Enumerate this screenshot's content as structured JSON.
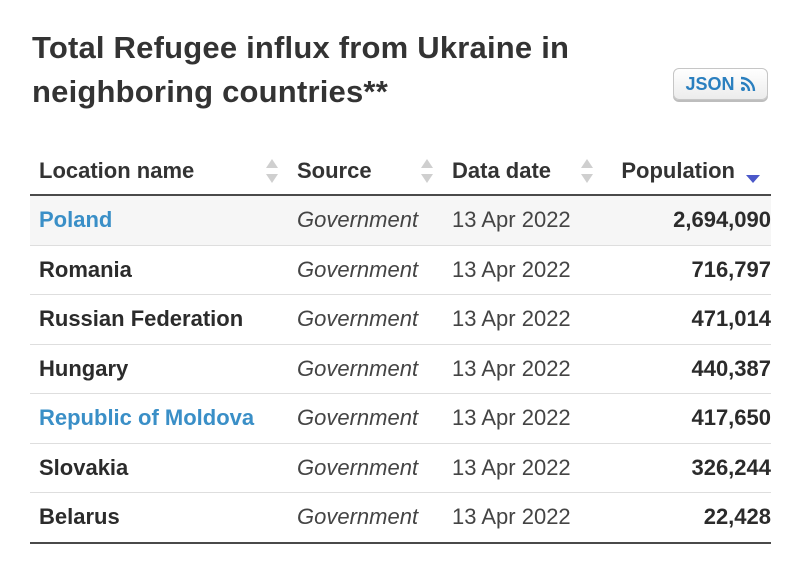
{
  "title": "Total Refugee influx from Ukraine in neighboring countries**",
  "json_button": {
    "label": "JSON",
    "icon": "rss-feed-icon",
    "color": "#2a7fbf"
  },
  "table": {
    "columns": [
      {
        "label": "Location name",
        "sort": "none"
      },
      {
        "label": "Source",
        "sort": "none"
      },
      {
        "label": "Data date",
        "sort": "none"
      },
      {
        "label": "Population",
        "sort": "descending"
      }
    ],
    "rows": [
      {
        "location": "Poland",
        "linked": true,
        "source": "Government",
        "date": "13 Apr 2022",
        "population": "2,694,090"
      },
      {
        "location": "Romania",
        "linked": false,
        "source": "Government",
        "date": "13 Apr 2022",
        "population": "716,797"
      },
      {
        "location": "Russian Federation",
        "linked": false,
        "source": "Government",
        "date": "13 Apr 2022",
        "population": "471,014"
      },
      {
        "location": "Hungary",
        "linked": false,
        "source": "Government",
        "date": "13 Apr 2022",
        "population": "440,387"
      },
      {
        "location": "Republic of Moldova",
        "linked": true,
        "source": "Government",
        "date": "13 Apr 2022",
        "population": "417,650"
      },
      {
        "location": "Slovakia",
        "linked": false,
        "source": "Government",
        "date": "13 Apr 2022",
        "population": "326,244"
      },
      {
        "location": "Belarus",
        "linked": false,
        "source": "Government",
        "date": "13 Apr 2022",
        "population": "22,428"
      }
    ]
  },
  "colors": {
    "link": "#3a8fc7",
    "sort_active": "#4b58c9",
    "sort_inactive": "#cfcfcf"
  }
}
